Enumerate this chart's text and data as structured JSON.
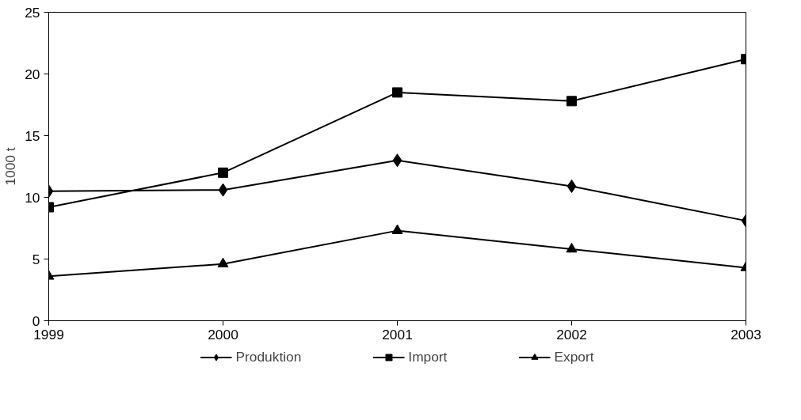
{
  "chart_data": {
    "type": "line",
    "ylabel": "1000 t",
    "x": [
      1999,
      2000,
      2001,
      2002,
      2003
    ],
    "series": [
      {
        "name": "Produktion",
        "color": "#000000",
        "marker": "diamond",
        "values": [
          10.5,
          10.6,
          13.0,
          10.9,
          8.1
        ]
      },
      {
        "name": "Import",
        "color": "#000000",
        "marker": "square",
        "values": [
          9.2,
          12.0,
          18.5,
          17.8,
          21.2
        ]
      },
      {
        "name": "Export",
        "color": "#000000",
        "marker": "triangle",
        "values": [
          3.6,
          4.6,
          7.3,
          5.8,
          4.3
        ]
      }
    ],
    "xlim": [
      1999,
      2003
    ],
    "xticks": [
      1999,
      2000,
      2001,
      2002,
      2003
    ],
    "ylim": [
      0,
      25
    ],
    "yticks": [
      0,
      5,
      10,
      15,
      20,
      25
    ],
    "grid": false,
    "legend": "bottom",
    "line_style": "solid"
  }
}
